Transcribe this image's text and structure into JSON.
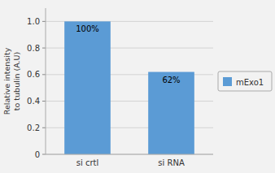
{
  "chart_data": {
    "type": "bar",
    "categories": [
      "si crtl",
      "si RNA"
    ],
    "series": [
      {
        "name": "mExo1",
        "color": "#5B9BD5",
        "values": [
          1.0,
          0.62
        ],
        "value_labels": [
          "100%",
          "62%"
        ]
      }
    ],
    "ylabel": "Relative intensity\nto tubulin (A.U)",
    "ylim": [
      0,
      1.1
    ],
    "yticks": [
      0,
      0.2,
      0.4,
      0.6,
      0.8,
      {
        "value": 1.0,
        "label": "1.0"
      }
    ],
    "grid": true,
    "data_labels": true,
    "legend": "right"
  }
}
